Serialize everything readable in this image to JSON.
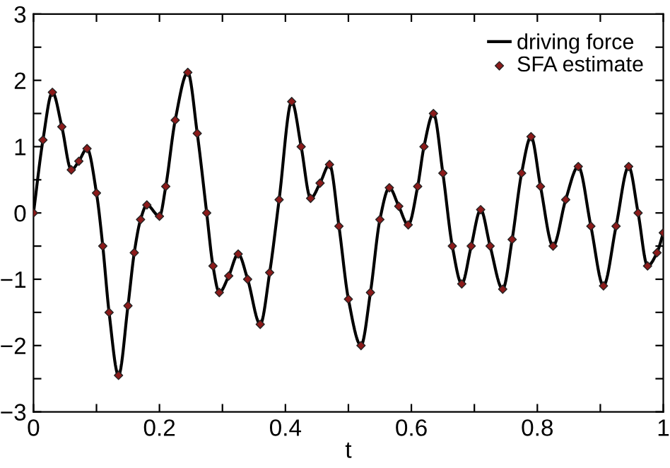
{
  "chart_data": {
    "type": "line",
    "xlabel": "t",
    "x": [
      0,
      0.015,
      0.03,
      0.045,
      0.06,
      0.072,
      0.085,
      0.1,
      0.11,
      0.12,
      0.135,
      0.15,
      0.16,
      0.17,
      0.18,
      0.2,
      0.21,
      0.225,
      0.245,
      0.26,
      0.275,
      0.285,
      0.295,
      0.31,
      0.325,
      0.34,
      0.36,
      0.375,
      0.39,
      0.41,
      0.425,
      0.44,
      0.455,
      0.47,
      0.485,
      0.5,
      0.52,
      0.535,
      0.55,
      0.565,
      0.58,
      0.595,
      0.61,
      0.62,
      0.635,
      0.65,
      0.665,
      0.68,
      0.695,
      0.71,
      0.725,
      0.745,
      0.76,
      0.775,
      0.79,
      0.805,
      0.825,
      0.845,
      0.865,
      0.885,
      0.905,
      0.925,
      0.945,
      0.96,
      0.975,
      0.99,
      1.0
    ],
    "series": [
      {
        "name": "driving force",
        "color": "#000000",
        "marker": "none",
        "line_style": "solid",
        "values": [
          0.0,
          1.1,
          1.82,
          1.3,
          0.65,
          0.78,
          0.97,
          0.3,
          -0.5,
          -1.5,
          -2.45,
          -1.4,
          -0.6,
          -0.1,
          0.12,
          -0.05,
          0.4,
          1.4,
          2.12,
          1.2,
          0.0,
          -0.8,
          -1.2,
          -0.95,
          -0.62,
          -1.0,
          -1.68,
          -0.9,
          0.2,
          1.68,
          1.0,
          0.22,
          0.45,
          0.73,
          -0.2,
          -1.3,
          -2.0,
          -1.2,
          -0.1,
          0.38,
          0.1,
          -0.18,
          0.4,
          1.0,
          1.5,
          0.6,
          -0.5,
          -1.07,
          -0.5,
          0.05,
          -0.5,
          -1.15,
          -0.4,
          0.6,
          1.15,
          0.4,
          -0.5,
          0.2,
          0.7,
          -0.2,
          -1.1,
          -0.2,
          0.7,
          0.0,
          -0.8,
          -0.6,
          -0.3
        ]
      },
      {
        "name": "SFA estimate",
        "type": "scatter",
        "color": "#8b1a1a",
        "marker": "diamond",
        "values": [
          0.0,
          1.1,
          1.82,
          1.3,
          0.65,
          0.78,
          0.97,
          0.3,
          -0.5,
          -1.5,
          -2.45,
          -1.4,
          -0.6,
          -0.1,
          0.12,
          -0.05,
          0.4,
          1.4,
          2.12,
          1.2,
          0.0,
          -0.8,
          -1.2,
          -0.95,
          -0.62,
          -1.0,
          -1.68,
          -0.9,
          0.2,
          1.68,
          1.0,
          0.22,
          0.45,
          0.73,
          -0.2,
          -1.3,
          -2.0,
          -1.2,
          -0.1,
          0.38,
          0.1,
          -0.18,
          0.4,
          1.0,
          1.5,
          0.6,
          -0.5,
          -1.07,
          -0.5,
          0.05,
          -0.5,
          -1.15,
          -0.4,
          0.6,
          1.15,
          0.4,
          -0.5,
          0.2,
          0.7,
          -0.2,
          -1.1,
          -0.2,
          0.7,
          0.0,
          -0.8,
          -0.6,
          -0.3
        ]
      }
    ],
    "xlim": [
      0,
      1
    ],
    "ylim": [
      -3,
      3
    ],
    "xticks": [
      0,
      {
        "value": 0.1,
        "label": null
      },
      {
        "value": 0.2,
        "label": "0.2"
      },
      {
        "value": 0.3,
        "label": null
      },
      {
        "value": 0.4,
        "label": "0.4"
      },
      {
        "value": 0.5,
        "label": null
      },
      {
        "value": 0.6,
        "label": "0.6"
      },
      {
        "value": 0.7,
        "label": null
      },
      {
        "value": 0.8,
        "label": "0.8"
      },
      {
        "value": 0.9,
        "label": null
      },
      1
    ],
    "yticks": [
      {
        "value": -3,
        "label": "−3"
      },
      {
        "value": -2.5,
        "label": null
      },
      {
        "value": -2,
        "label": "−2"
      },
      {
        "value": -1.5,
        "label": null
      },
      {
        "value": -1,
        "label": "−1"
      },
      {
        "value": -0.5,
        "label": null
      },
      0,
      {
        "value": 0.5,
        "label": null
      },
      1,
      {
        "value": 1.5,
        "label": null
      },
      2,
      {
        "value": 2.5,
        "label": null
      },
      3
    ],
    "grid": false,
    "legend": "top right"
  }
}
